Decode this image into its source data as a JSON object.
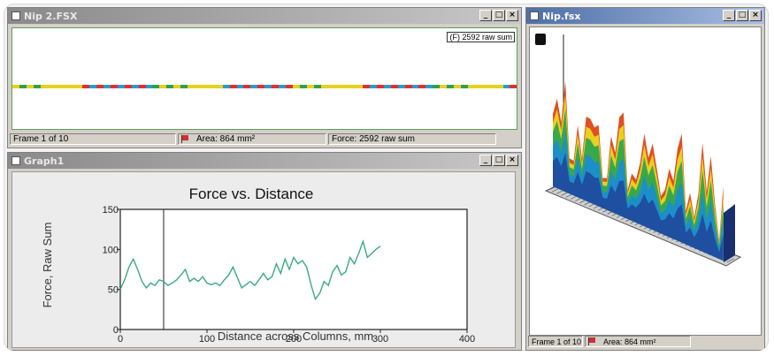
{
  "windows": {
    "top": {
      "title": "Nip 2.FSX",
      "raw_sum_label": "(F) 2592 raw sum",
      "status": {
        "frame": "Frame 1 of 10",
        "area": "Area: 864 mm²",
        "force": "Force: 2592 raw sum"
      },
      "strip_colors": [
        "#e8d020",
        "#e03030",
        "#2a9ad0",
        "#e8d020",
        "#30a050",
        "#2a9ad0",
        "#e03030",
        "#e8d020"
      ]
    },
    "graph": {
      "title": "Graph1",
      "controls": [
        "_",
        "□",
        "x"
      ]
    },
    "right": {
      "title": "Nip.fsx",
      "status": {
        "frame": "Frame 1 of 10",
        "area": "Area: 864 mm²"
      }
    }
  },
  "chart_data": {
    "type": "line",
    "title": "Force vs. Distance",
    "xlabel": "Distance across Columns, mm",
    "ylabel": "Force, Raw Sum",
    "xlim": [
      0,
      400
    ],
    "ylim": [
      0,
      150
    ],
    "xticks": [
      "0",
      "100",
      "200",
      "300",
      "400"
    ],
    "yticks": [
      "0",
      "50",
      "100",
      "150"
    ],
    "cursor_x": 50,
    "series": [
      {
        "color": "#3aa88a",
        "x": [
          0,
          5,
          10,
          15,
          20,
          25,
          30,
          35,
          40,
          45,
          50,
          55,
          60,
          65,
          70,
          75,
          80,
          85,
          90,
          95,
          100,
          105,
          110,
          115,
          120,
          125,
          130,
          135,
          140,
          145,
          150,
          155,
          160,
          165,
          170,
          175,
          180,
          185,
          190,
          195,
          200,
          205,
          210,
          215,
          220,
          225,
          230,
          235,
          240,
          245,
          250,
          255,
          260,
          265,
          270,
          275,
          280,
          285,
          290,
          295,
          300
        ],
        "y": [
          50,
          62,
          78,
          88,
          75,
          60,
          52,
          58,
          55,
          62,
          60,
          55,
          58,
          62,
          68,
          75,
          60,
          64,
          60,
          66,
          58,
          56,
          58,
          55,
          62,
          68,
          78,
          65,
          52,
          56,
          60,
          55,
          62,
          70,
          62,
          66,
          82,
          70,
          88,
          75,
          90,
          82,
          86,
          78,
          56,
          38,
          45,
          60,
          55,
          72,
          80,
          68,
          72,
          90,
          82,
          95,
          110,
          90,
          95,
          100,
          104
        ]
      }
    ]
  }
}
